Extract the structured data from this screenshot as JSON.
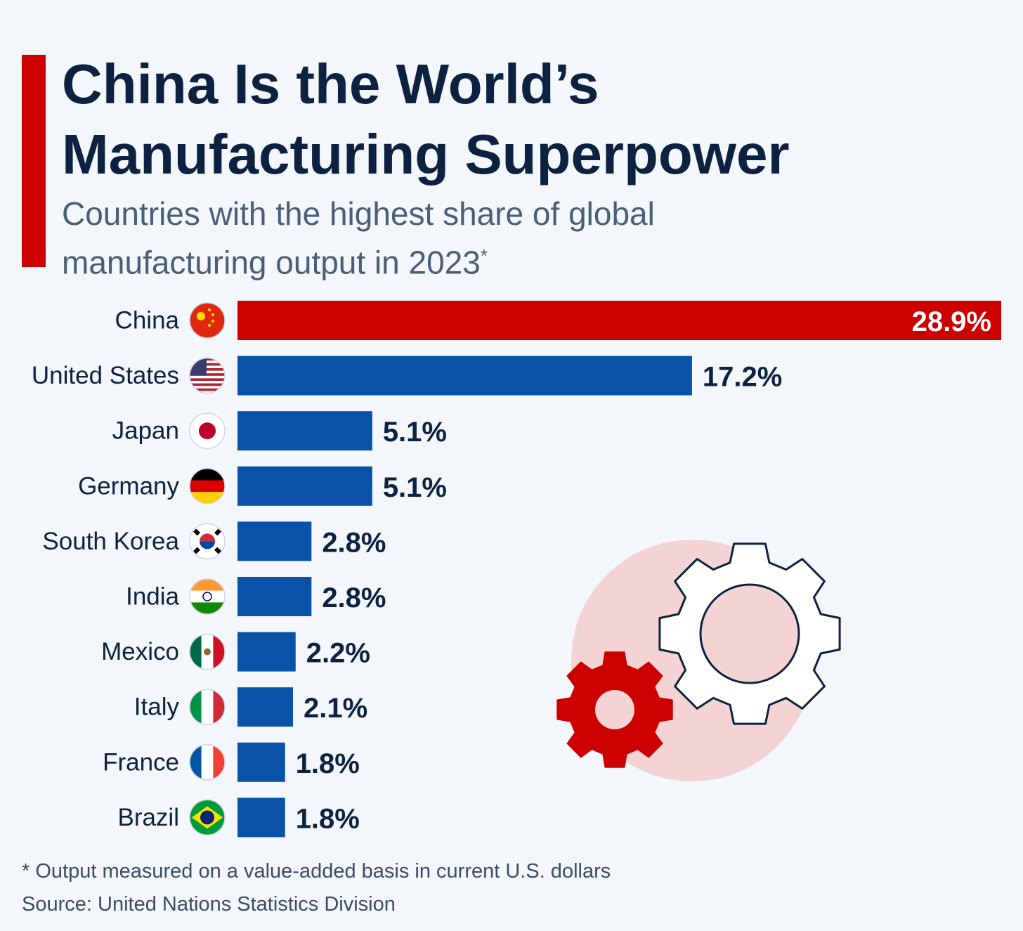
{
  "chart_data": {
    "type": "bar",
    "orientation": "horizontal",
    "title": "China Is the World’s Manufacturing Superpower",
    "subtitle": "Countries with the highest share of global manufacturing output in 2023",
    "subtitle_mark": "*",
    "categories": [
      "China",
      "United States",
      "Japan",
      "Germany",
      "South Korea",
      "India",
      "Mexico",
      "Italy",
      "France",
      "Brazil"
    ],
    "values": [
      28.9,
      17.2,
      5.1,
      5.1,
      2.8,
      2.8,
      2.2,
      2.1,
      1.8,
      1.8
    ],
    "value_labels": [
      "28.9%",
      "17.2%",
      "5.1%",
      "5.1%",
      "2.8%",
      "2.8%",
      "2.2%",
      "2.1%",
      "1.8%",
      "1.8%"
    ],
    "colors": [
      "#cc0000",
      "#0a52a8",
      "#0a52a8",
      "#0a52a8",
      "#0a52a8",
      "#0a52a8",
      "#0a52a8",
      "#0a52a8",
      "#0a52a8",
      "#0a52a8"
    ],
    "footnote": "* Output measured on a value-added basis in current U.S. dollars",
    "source": "Source: United Nations Statistics Division"
  }
}
